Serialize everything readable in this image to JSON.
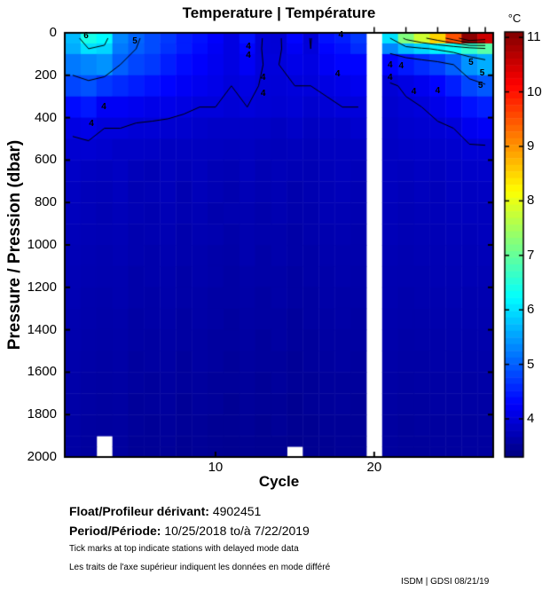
{
  "title": "Temperature | Température",
  "footer": {
    "float_label": "Float/Profileur dérivant:",
    "float_value": "4902451",
    "period_label": "Period/Période:",
    "period_value": "10/25/2018  to/à  7/22/2019",
    "note_en": "Tick marks at top indicate stations with delayed mode data",
    "note_fr": "Les traits de l'axe supérieur indiquent les données en mode différé",
    "credit": "ISDM | GDSI  08/21/19"
  },
  "chart_data": {
    "type": "heatmap",
    "title": "Temperature | Température",
    "xlabel": "Cycle",
    "ylabel": "Pressure / Pression (dbar)",
    "colorbar_label": "°C",
    "colormap": "jet",
    "clim": [
      3.3,
      11.1
    ],
    "x_range": [
      0.5,
      27.5
    ],
    "y_range": [
      0,
      2000
    ],
    "y_axis_direction": "down",
    "grid": false,
    "x_ticks": [
      10,
      20
    ],
    "y_ticks": [
      0,
      200,
      400,
      600,
      800,
      1000,
      1200,
      1400,
      1600,
      1800,
      2000
    ],
    "colorbar_ticks": [
      4,
      5,
      6,
      7,
      8,
      9,
      10,
      11
    ],
    "delayed_mode_tick_cycles": [
      20,
      22,
      24,
      26,
      27
    ],
    "cycles": [
      1,
      2,
      3,
      4,
      5,
      6,
      7,
      8,
      9,
      10,
      11,
      12,
      13,
      14,
      15,
      16,
      17,
      18,
      19,
      20,
      21,
      22,
      23,
      24,
      25,
      26,
      27
    ],
    "pressure_bin_edges": [
      0,
      50,
      100,
      200,
      300,
      400,
      500,
      600,
      700,
      800,
      900,
      1000,
      1100,
      1200,
      1300,
      1400,
      1500,
      1600,
      1700,
      1800,
      1900,
      1950,
      2000
    ],
    "values": [
      [
        5.7,
        6.4,
        6.2,
        5.3,
        5.05,
        4.85,
        4.7,
        4.5,
        4.4,
        4.25,
        4.05,
        4.4,
        3.98,
        3.95,
        4.3,
        3.98,
        4.4,
        4.5,
        4.7,
        null,
        6.0,
        7.2,
        7.8,
        8.5,
        9.5,
        11.0,
        10.5
      ],
      [
        5.6,
        6.0,
        5.9,
        5.2,
        5.0,
        4.85,
        4.65,
        4.5,
        4.35,
        4.2,
        4.05,
        4.3,
        3.97,
        3.96,
        4.2,
        4.0,
        4.3,
        4.4,
        4.6,
        null,
        5.3,
        5.7,
        5.9,
        6.1,
        6.3,
        6.6,
        6.9
      ],
      [
        5.2,
        5.3,
        5.4,
        5.0,
        4.8,
        4.7,
        4.5,
        4.35,
        4.25,
        4.15,
        4.05,
        4.2,
        4.0,
        4.0,
        4.1,
        4.05,
        4.2,
        4.3,
        4.3,
        null,
        4.3,
        4.45,
        4.6,
        4.75,
        5.0,
        5.4,
        5.6
      ],
      [
        4.8,
        4.9,
        4.7,
        4.6,
        4.5,
        4.4,
        4.3,
        4.2,
        4.15,
        4.1,
        4.0,
        4.05,
        3.98,
        3.97,
        4.0,
        4.0,
        4.05,
        4.1,
        4.15,
        null,
        3.95,
        4.05,
        4.15,
        4.3,
        4.5,
        4.8,
        4.95
      ],
      [
        4.35,
        4.45,
        4.2,
        4.2,
        4.15,
        4.1,
        4.1,
        4.05,
        4.0,
        4.0,
        3.95,
        4.0,
        3.95,
        3.93,
        3.95,
        3.9,
        3.95,
        4.0,
        4.0,
        null,
        3.9,
        3.95,
        4.0,
        4.1,
        4.2,
        4.4,
        4.5
      ],
      [
        4.05,
        4.1,
        4.0,
        4.0,
        3.95,
        3.95,
        3.92,
        3.9,
        3.88,
        3.85,
        3.85,
        3.85,
        3.84,
        3.8,
        3.85,
        3.8,
        3.85,
        3.85,
        3.9,
        null,
        3.85,
        3.9,
        3.92,
        3.95,
        4.0,
        4.15,
        4.2
      ],
      [
        3.92,
        3.93,
        3.9,
        3.85,
        3.85,
        3.84,
        3.8,
        3.8,
        3.8,
        3.79,
        3.78,
        3.8,
        3.76,
        3.75,
        3.76,
        3.75,
        3.79,
        3.8,
        3.8,
        null,
        3.82,
        3.85,
        3.86,
        3.88,
        3.9,
        3.95,
        3.95
      ],
      [
        3.85,
        3.8,
        3.78,
        3.82,
        3.75,
        3.72,
        3.78,
        3.74,
        3.77,
        3.72,
        3.7,
        3.76,
        3.7,
        3.73,
        3.71,
        3.7,
        3.75,
        3.77,
        3.74,
        null,
        3.8,
        3.78,
        3.82,
        3.79,
        3.84,
        3.86,
        3.87
      ],
      [
        3.8,
        3.75,
        3.73,
        3.78,
        3.7,
        3.72,
        3.75,
        3.68,
        3.74,
        3.7,
        3.66,
        3.72,
        3.68,
        3.7,
        3.65,
        3.68,
        3.72,
        3.74,
        3.7,
        null,
        3.78,
        3.74,
        3.78,
        3.75,
        3.8,
        3.8,
        3.82
      ],
      [
        3.77,
        3.74,
        3.7,
        3.74,
        3.7,
        3.68,
        3.72,
        3.68,
        3.7,
        3.65,
        3.67,
        3.68,
        3.64,
        3.68,
        3.64,
        3.65,
        3.7,
        3.7,
        3.68,
        null,
        3.75,
        3.72,
        3.74,
        3.74,
        3.76,
        3.78,
        3.77
      ],
      [
        3.74,
        3.72,
        3.7,
        3.72,
        3.66,
        3.68,
        3.69,
        3.64,
        3.68,
        3.66,
        3.62,
        3.66,
        3.64,
        3.64,
        3.6,
        3.64,
        3.66,
        3.68,
        3.65,
        null,
        3.73,
        3.7,
        3.72,
        3.72,
        3.74,
        3.74,
        3.76
      ],
      [
        3.72,
        3.69,
        3.67,
        3.7,
        3.66,
        3.64,
        3.67,
        3.64,
        3.65,
        3.62,
        3.6,
        3.66,
        3.6,
        3.64,
        3.6,
        3.6,
        3.65,
        3.65,
        3.64,
        null,
        3.7,
        3.68,
        3.7,
        3.7,
        3.72,
        3.72,
        3.73
      ],
      [
        3.7,
        3.68,
        3.66,
        3.67,
        3.62,
        3.64,
        3.65,
        3.6,
        3.64,
        3.62,
        3.58,
        3.62,
        3.6,
        3.6,
        3.56,
        3.6,
        3.62,
        3.64,
        3.62,
        null,
        3.68,
        3.67,
        3.67,
        3.69,
        3.69,
        3.71,
        3.7
      ],
      [
        3.69,
        3.65,
        3.63,
        3.66,
        3.62,
        3.6,
        3.63,
        3.6,
        3.61,
        3.58,
        3.58,
        3.6,
        3.56,
        3.6,
        3.56,
        3.56,
        3.61,
        3.6,
        3.6,
        null,
        3.67,
        3.64,
        3.66,
        3.66,
        3.68,
        3.67,
        3.68
      ],
      [
        3.66,
        3.64,
        3.62,
        3.63,
        3.58,
        3.6,
        3.61,
        3.56,
        3.6,
        3.58,
        3.54,
        3.58,
        3.56,
        3.56,
        3.52,
        3.56,
        3.58,
        3.6,
        3.57,
        null,
        3.65,
        3.63,
        3.63,
        3.65,
        3.65,
        3.66,
        3.66
      ],
      [
        3.65,
        3.62,
        3.6,
        3.62,
        3.58,
        3.56,
        3.59,
        3.56,
        3.57,
        3.54,
        3.54,
        3.56,
        3.52,
        3.56,
        3.52,
        3.52,
        3.56,
        3.56,
        3.56,
        null,
        3.63,
        3.6,
        3.62,
        3.62,
        3.63,
        3.63,
        3.64
      ],
      [
        3.63,
        3.6,
        3.58,
        3.6,
        3.54,
        3.56,
        3.57,
        3.52,
        3.56,
        3.54,
        3.5,
        3.54,
        3.52,
        3.52,
        3.48,
        3.52,
        3.54,
        3.56,
        3.53,
        null,
        3.61,
        3.59,
        3.59,
        3.61,
        3.61,
        3.62,
        3.62
      ],
      [
        3.62,
        3.58,
        3.56,
        3.58,
        3.54,
        3.52,
        3.55,
        3.52,
        3.53,
        3.5,
        3.5,
        3.52,
        3.48,
        3.52,
        3.48,
        3.48,
        3.52,
        3.52,
        3.52,
        null,
        3.59,
        3.56,
        3.58,
        3.58,
        3.59,
        3.59,
        3.6
      ],
      [
        3.6,
        3.57,
        3.55,
        3.56,
        3.5,
        3.52,
        3.53,
        3.48,
        3.52,
        3.5,
        3.46,
        3.5,
        3.48,
        3.48,
        3.44,
        3.48,
        3.5,
        3.52,
        3.49,
        null,
        3.57,
        3.55,
        3.55,
        3.57,
        3.57,
        3.58,
        3.58
      ],
      [
        3.59,
        3.55,
        3.53,
        3.55,
        3.5,
        3.48,
        3.51,
        3.48,
        3.49,
        3.46,
        3.46,
        3.48,
        3.44,
        3.48,
        3.44,
        3.44,
        3.48,
        3.48,
        3.48,
        null,
        3.55,
        3.52,
        3.54,
        3.54,
        3.55,
        3.55,
        3.56
      ],
      [
        3.58,
        3.54,
        null,
        3.54,
        3.48,
        3.48,
        3.5,
        3.46,
        3.48,
        3.46,
        3.44,
        3.46,
        3.44,
        3.44,
        3.42,
        3.44,
        3.46,
        3.48,
        3.46,
        null,
        3.54,
        3.52,
        3.52,
        3.54,
        3.54,
        3.55,
        3.55
      ],
      [
        3.57,
        3.53,
        null,
        3.53,
        3.47,
        3.47,
        3.49,
        3.45,
        3.47,
        3.45,
        3.43,
        3.45,
        3.43,
        3.43,
        null,
        3.43,
        3.45,
        3.47,
        3.45,
        null,
        3.53,
        3.51,
        3.51,
        3.53,
        3.53,
        3.54,
        3.54
      ]
    ],
    "contour_levels": [
      4,
      5,
      6,
      7,
      8,
      9,
      10
    ],
    "contour_labels": [
      {
        "level": "6",
        "cycle": 1.84,
        "pressure": 17
      },
      {
        "level": "5",
        "cycle": 4.92,
        "pressure": 42
      },
      {
        "level": "4",
        "cycle": 12.07,
        "pressure": 67
      },
      {
        "level": "4",
        "cycle": 12.07,
        "pressure": 109
      },
      {
        "level": "4",
        "cycle": 13.0,
        "pressure": 213
      },
      {
        "level": "4",
        "cycle": 13.0,
        "pressure": 289
      },
      {
        "level": "4",
        "cycle": 2.96,
        "pressure": 351
      },
      {
        "level": "4",
        "cycle": 2.18,
        "pressure": 431
      },
      {
        "level": "4",
        "cycle": 17.9,
        "pressure": 14
      },
      {
        "level": "4",
        "cycle": 17.7,
        "pressure": 197
      },
      {
        "level": "4",
        "cycle": 21.0,
        "pressure": 155
      },
      {
        "level": "4",
        "cycle": 21.7,
        "pressure": 159
      },
      {
        "level": "4",
        "cycle": 21.0,
        "pressure": 213
      },
      {
        "level": "4",
        "cycle": 22.5,
        "pressure": 280
      },
      {
        "level": "4",
        "cycle": 24.0,
        "pressure": 276
      },
      {
        "level": "5",
        "cycle": 26.1,
        "pressure": 142
      },
      {
        "level": "5",
        "cycle": 26.8,
        "pressure": 192
      },
      {
        "level": "5",
        "cycle": 26.7,
        "pressure": 251
      }
    ],
    "missing_data": "white cells = no data (cycle 20 entire profile; cycle 3 below 1900 dbar; cycle 15 below 1950 dbar)",
    "legend_position": "right-colorbar",
    "frame_color": "#000000"
  }
}
